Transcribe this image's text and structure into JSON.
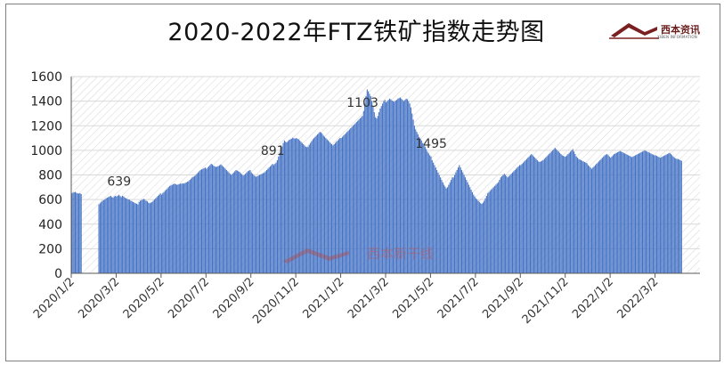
{
  "title": "2020-2022年FTZ铁矿指数走势图",
  "logo": {
    "brand_text": "西本资讯",
    "sub_text": "XIBEN INFORMATION"
  },
  "watermark": {
    "text": "西本新干线"
  },
  "colors": {
    "bar": "#4472c4",
    "title": "#111111",
    "grid": "#d9d9d9"
  },
  "chart_data": {
    "type": "bar",
    "title": "2020-2022年FTZ铁矿指数走势图",
    "xlabel": "",
    "ylabel": "",
    "ylim": [
      0,
      1600
    ],
    "yticks": [
      0,
      200,
      400,
      600,
      800,
      1000,
      1200,
      1400,
      1600
    ],
    "xtick_labels": [
      "2020/1/2",
      "2020/3/2",
      "2020/5/2",
      "2020/7/2",
      "2020/9/2",
      "2020/11/2",
      "2021/1/2",
      "2021/3/2",
      "2021/5/2",
      "2021/7/2",
      "2021/9/2",
      "2021/11/2",
      "2022/1/2",
      "2022/3/2"
    ],
    "grid": true,
    "legend": "none",
    "annotations": [
      {
        "label": "639",
        "month_index": 2
      },
      {
        "label": "891",
        "month_index": 8
      },
      {
        "label": "1103",
        "month_index": 12
      },
      {
        "label": "1495",
        "month_index": 16
      }
    ],
    "months": [
      "2020/1",
      "2020/2",
      "2020/3",
      "2020/4",
      "2020/5",
      "2020/6",
      "2020/7",
      "2020/8",
      "2020/9",
      "2020/10",
      "2020/11",
      "2020/12",
      "2021/1",
      "2021/2",
      "2021/3",
      "2021/4",
      "2021/5",
      "2021/6",
      "2021/7",
      "2021/8",
      "2021/9",
      "2021/10",
      "2021/11",
      "2021/12",
      "2022/1",
      "2022/2",
      "2022/3",
      "2022/4"
    ],
    "series": [
      {
        "values": [
          [
            650,
            655,
            660,
            662,
            655,
            650,
            648,
            652,
            645,
            0,
            0,
            0,
            0,
            0,
            0,
            0,
            0,
            0,
            0
          ],
          [
            0,
            0,
            0,
            0,
            560,
            570,
            580,
            590,
            595,
            600,
            610,
            615,
            620,
            625,
            630,
            620,
            615,
            625,
            630
          ],
          [
            625,
            632,
            639,
            628,
            620,
            630,
            625,
            615,
            610,
            605,
            600,
            598,
            590,
            585,
            580,
            575,
            570,
            565,
            560
          ],
          [
            580,
            590,
            595,
            600,
            605,
            598,
            590,
            585,
            575,
            570,
            575,
            580,
            590,
            600,
            610,
            620,
            630,
            640,
            650
          ],
          [
            640,
            650,
            660,
            670,
            680,
            690,
            700,
            710,
            715,
            720,
            725,
            730,
            725,
            720,
            722,
            725,
            730,
            728,
            732
          ],
          [
            730,
            735,
            740,
            745,
            750,
            760,
            770,
            780,
            785,
            790,
            800,
            810,
            820,
            830,
            840,
            845,
            850,
            855,
            860
          ],
          [
            850,
            860,
            870,
            880,
            891,
            885,
            875,
            870,
            865,
            868,
            872,
            878,
            885,
            880,
            870,
            860,
            850,
            840,
            830
          ],
          [
            820,
            810,
            800,
            810,
            820,
            830,
            840,
            835,
            830,
            825,
            815,
            805,
            795,
            800,
            810,
            820,
            830,
            835,
            840
          ],
          [
            820,
            810,
            800,
            790,
            785,
            790,
            795,
            800,
            805,
            810,
            815,
            820,
            830,
            840,
            850,
            860,
            870,
            880,
            890
          ],
          [
            880,
            890,
            900,
            920,
            950,
            980,
            1000,
            1030,
            1060,
            1080,
            1070,
            1065,
            1075,
            1085,
            1090,
            1095,
            1103,
            1098,
            1095
          ],
          [
            1100,
            1095,
            1090,
            1080,
            1070,
            1060,
            1050,
            1040,
            1030,
            1025,
            1030,
            1045,
            1060,
            1075,
            1090,
            1100,
            1110,
            1120,
            1130
          ],
          [
            1140,
            1150,
            1145,
            1135,
            1120,
            1110,
            1100,
            1090,
            1080,
            1070,
            1060,
            1050,
            1040,
            1050,
            1060,
            1070,
            1080,
            1090,
            1100
          ],
          [
            1100,
            1110,
            1120,
            1130,
            1140,
            1150,
            1160,
            1170,
            1180,
            1190,
            1200,
            1210,
            1220,
            1230,
            1240,
            1250,
            1260,
            1270,
            1280
          ],
          [
            1320,
            1380,
            1440,
            1495,
            1480,
            1460,
            1440,
            1400,
            1360,
            1310,
            1270,
            1260,
            1280,
            1310,
            1340,
            1360,
            1380,
            1400,
            1410
          ],
          [
            1390,
            1400,
            1410,
            1420,
            1415,
            1405,
            1400,
            1395,
            1405,
            1410,
            1420,
            1425,
            1430,
            1420,
            1410,
            1400,
            1410,
            1420,
            1415
          ],
          [
            1400,
            1380,
            1350,
            1300,
            1250,
            1200,
            1170,
            1150,
            1130,
            1110,
            1095,
            1080,
            1060,
            1050,
            1030,
            1010,
            990,
            975,
            960
          ],
          [
            950,
            920,
            900,
            880,
            860,
            840,
            820,
            800,
            780,
            760,
            740,
            720,
            705,
            690,
            700,
            720,
            740,
            760,
            780
          ],
          [
            780,
            800,
            820,
            840,
            860,
            880,
            860,
            840,
            820,
            800,
            780,
            760,
            740,
            720,
            700,
            680,
            660,
            640,
            625
          ],
          [
            610,
            600,
            590,
            580,
            570,
            565,
            575,
            590,
            610,
            630,
            650,
            660,
            670,
            680,
            690,
            700,
            710,
            720,
            730
          ],
          [
            740,
            760,
            780,
            790,
            800,
            810,
            800,
            790,
            780,
            790,
            800,
            810,
            820,
            830,
            840,
            850,
            860,
            870,
            880
          ],
          [
            880,
            890,
            900,
            910,
            920,
            930,
            940,
            950,
            960,
            970,
            960,
            950,
            940,
            930,
            920,
            910,
            905,
            910,
            915
          ],
          [
            920,
            930,
            940,
            950,
            960,
            970,
            980,
            990,
            1000,
            1010,
            1020,
            1010,
            1000,
            990,
            980,
            970,
            960,
            955,
            950
          ],
          [
            950,
            960,
            970,
            980,
            990,
            1000,
            1010,
            990,
            970,
            950,
            940,
            930,
            925,
            920,
            915,
            910,
            905,
            900,
            895
          ],
          [
            880,
            870,
            860,
            850,
            860,
            870,
            880,
            890,
            900,
            910,
            920,
            930,
            940,
            950,
            960,
            965,
            970,
            960,
            950
          ],
          [
            940,
            950,
            960,
            970,
            975,
            980,
            985,
            990,
            995,
            990,
            985,
            980,
            975,
            970,
            965,
            960,
            955,
            950,
            945
          ],
          [
            950,
            955,
            960,
            965,
            970,
            975,
            980,
            985,
            990,
            995,
            1000,
            995,
            990,
            985,
            980,
            975,
            970,
            965,
            960
          ],
          [
            960,
            955,
            950,
            945,
            940,
            945,
            950,
            955,
            960,
            965,
            970,
            975,
            980,
            970,
            960,
            950,
            940,
            935,
            930
          ],
          [
            930,
            925,
            920,
            915,
            0,
            0,
            0,
            0,
            0,
            0,
            0,
            0,
            0,
            0,
            0,
            0,
            0,
            0,
            0
          ]
        ]
      }
    ]
  }
}
